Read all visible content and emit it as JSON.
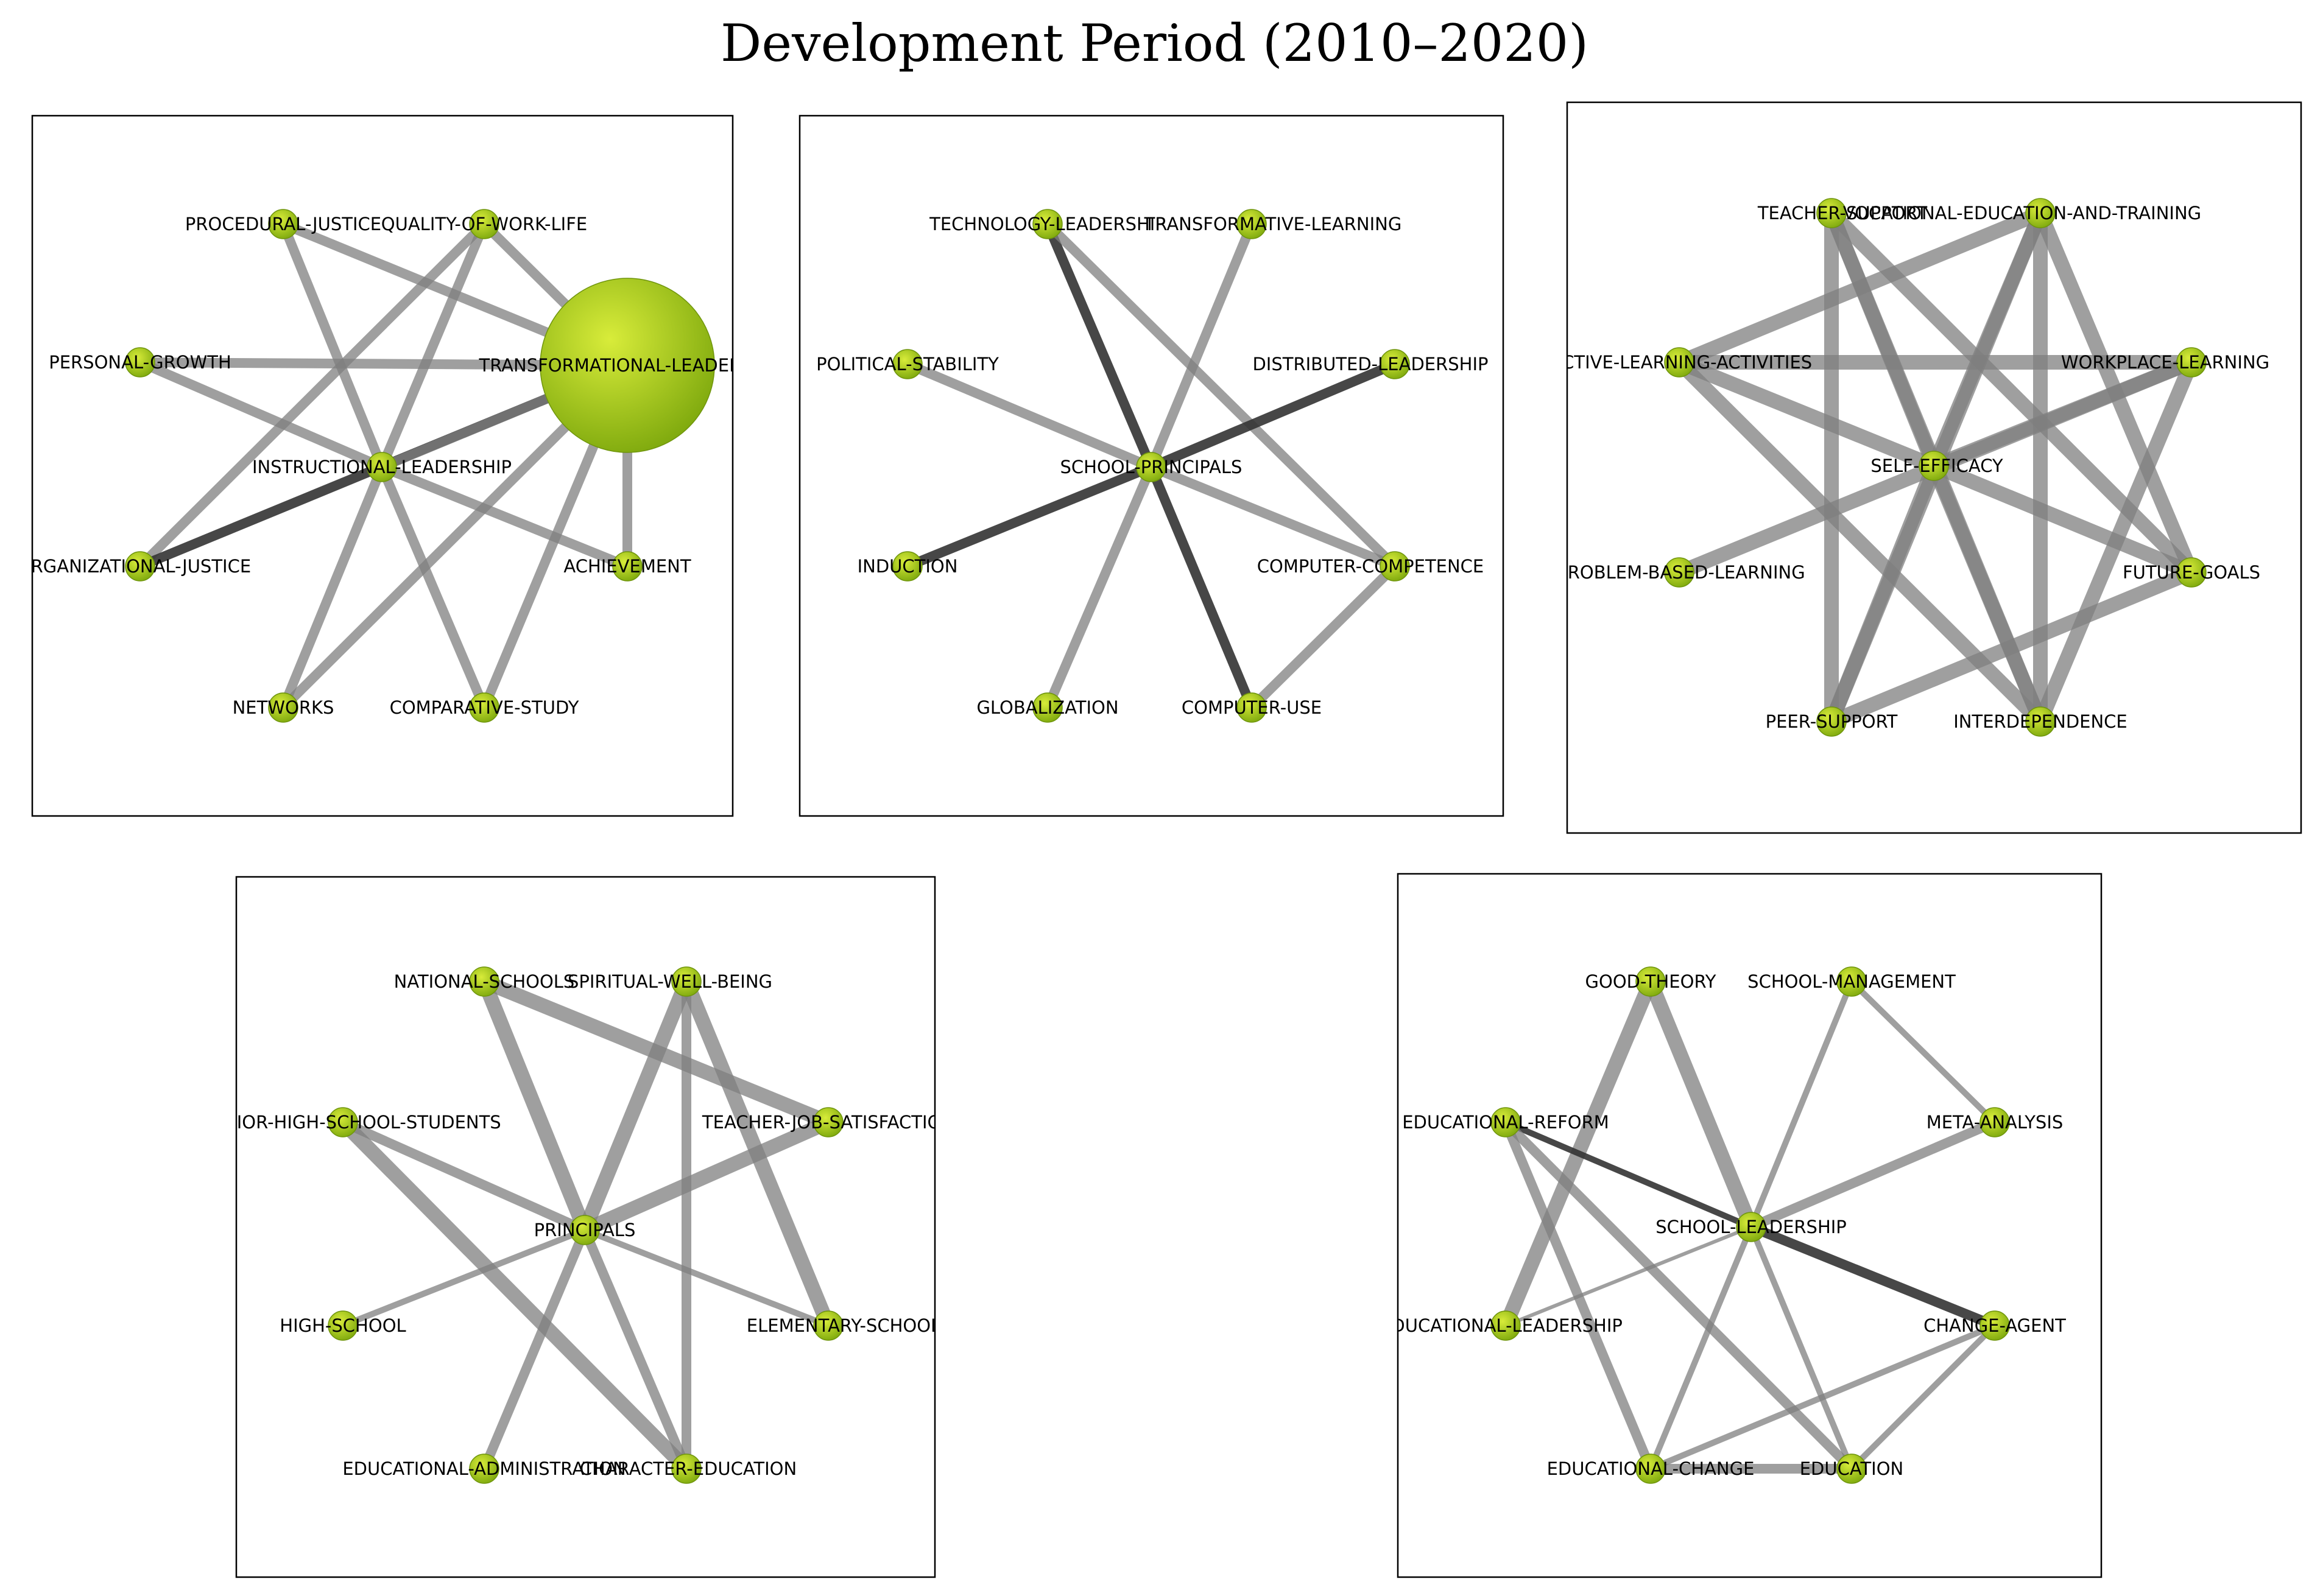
{
  "title": "Development Period (2010–2020)",
  "colors": {
    "node_fill_light": "#d8ec3a",
    "node_fill_dark": "#7da80d",
    "edge_light": "#7f7f7f",
    "edge_dark": "#333333",
    "panel_border": "#000000"
  },
  "networks": [
    {
      "id": "cluster-1",
      "nodes": [
        {
          "id": "n1",
          "label": "PROCEDURAL-JUSTICE"
        },
        {
          "id": "n2",
          "label": "QUALITY-OF-WORK-LIFE"
        },
        {
          "id": "n3",
          "label": "PERSONAL-GROWTH"
        },
        {
          "id": "n4",
          "label": "TRANSFORMATIONAL-LEADERSHIP",
          "major": true
        },
        {
          "id": "n5",
          "label": "INSTRUCTIONAL-LEADERSHIP"
        },
        {
          "id": "n6",
          "label": "ORGANIZATIONAL-JUSTICE"
        },
        {
          "id": "n7",
          "label": "ACHIEVEMENT"
        },
        {
          "id": "n8",
          "label": "NETWORKS"
        },
        {
          "id": "n9",
          "label": "COMPARATIVE-STUDY"
        }
      ],
      "edges": [
        {
          "source": "n1",
          "target": "n5",
          "weight": "medium",
          "strength": "moderate"
        },
        {
          "source": "n1",
          "target": "n4",
          "weight": "medium",
          "strength": "moderate"
        },
        {
          "source": "n2",
          "target": "n4",
          "weight": "medium",
          "strength": "moderate"
        },
        {
          "source": "n2",
          "target": "n5",
          "weight": "medium",
          "strength": "moderate"
        },
        {
          "source": "n2",
          "target": "n6",
          "weight": "medium",
          "strength": "moderate"
        },
        {
          "source": "n3",
          "target": "n4",
          "weight": "medium",
          "strength": "moderate"
        },
        {
          "source": "n3",
          "target": "n5",
          "weight": "medium",
          "strength": "moderate"
        },
        {
          "source": "n6",
          "target": "n4",
          "weight": "medium",
          "strength": "strong"
        },
        {
          "source": "n5",
          "target": "n4",
          "weight": "medium",
          "strength": "moderate"
        },
        {
          "source": "n5",
          "target": "n7",
          "weight": "medium",
          "strength": "moderate"
        },
        {
          "source": "n5",
          "target": "n8",
          "weight": "medium",
          "strength": "moderate"
        },
        {
          "source": "n5",
          "target": "n9",
          "weight": "medium",
          "strength": "moderate"
        },
        {
          "source": "n4",
          "target": "n7",
          "weight": "medium",
          "strength": "moderate"
        },
        {
          "source": "n4",
          "target": "n8",
          "weight": "medium",
          "strength": "moderate"
        },
        {
          "source": "n4",
          "target": "n9",
          "weight": "medium",
          "strength": "moderate"
        }
      ]
    },
    {
      "id": "cluster-2",
      "nodes": [
        {
          "id": "m1",
          "label": "TECHNOLOGY-LEADERSHIP"
        },
        {
          "id": "m2",
          "label": "TRANSFORMATIVE-LEARNING"
        },
        {
          "id": "m3",
          "label": "POLITICAL-STABILITY"
        },
        {
          "id": "m4",
          "label": "DISTRIBUTED-LEADERSHIP"
        },
        {
          "id": "m5",
          "label": "SCHOOL-PRINCIPALS"
        },
        {
          "id": "m6",
          "label": "INDUCTION"
        },
        {
          "id": "m7",
          "label": "COMPUTER-COMPETENCE"
        },
        {
          "id": "m8",
          "label": "GLOBALIZATION"
        },
        {
          "id": "m9",
          "label": "COMPUTER-USE"
        }
      ],
      "edges": [
        {
          "source": "m1",
          "target": "m5",
          "weight": "medium",
          "strength": "strong"
        },
        {
          "source": "m1",
          "target": "m7",
          "weight": "medium",
          "strength": "moderate"
        },
        {
          "source": "m2",
          "target": "m5",
          "weight": "medium",
          "strength": "moderate"
        },
        {
          "source": "m3",
          "target": "m5",
          "weight": "medium",
          "strength": "moderate"
        },
        {
          "source": "m4",
          "target": "m5",
          "weight": "medium",
          "strength": "strong"
        },
        {
          "source": "m6",
          "target": "m5",
          "weight": "medium",
          "strength": "strong"
        },
        {
          "source": "m5",
          "target": "m7",
          "weight": "medium",
          "strength": "moderate"
        },
        {
          "source": "m5",
          "target": "m8",
          "weight": "medium",
          "strength": "moderate"
        },
        {
          "source": "m5",
          "target": "m9",
          "weight": "medium",
          "strength": "strong"
        },
        {
          "source": "m7",
          "target": "m9",
          "weight": "medium",
          "strength": "moderate"
        }
      ]
    },
    {
      "id": "cluster-3",
      "nodes": [
        {
          "id": "k1",
          "label": "TEACHER-SUPPORT"
        },
        {
          "id": "k2",
          "label": "VOCATIONAL-EDUCATION-AND-TRAINING"
        },
        {
          "id": "k3",
          "label": "ACTIVE-LEARNING-ACTIVITIES"
        },
        {
          "id": "k4",
          "label": "WORKPLACE-LEARNING"
        },
        {
          "id": "k5",
          "label": "SELF-EFFICACY"
        },
        {
          "id": "k6",
          "label": "PROBLEM-BASED-LEARNING"
        },
        {
          "id": "k7",
          "label": "FUTURE-GOALS"
        },
        {
          "id": "k8",
          "label": "PEER-SUPPORT"
        },
        {
          "id": "k9",
          "label": "INTERDEPENDENCE"
        }
      ],
      "edges": [
        {
          "source": "k1",
          "target": "k5",
          "weight": "heavy",
          "strength": "moderate"
        },
        {
          "source": "k1",
          "target": "k8",
          "weight": "heavy",
          "strength": "moderate"
        },
        {
          "source": "k1",
          "target": "k7",
          "weight": "heavy",
          "strength": "moderate"
        },
        {
          "source": "k1",
          "target": "k9",
          "weight": "heavy",
          "strength": "moderate"
        },
        {
          "source": "k2",
          "target": "k3",
          "weight": "heavy",
          "strength": "moderate"
        },
        {
          "source": "k2",
          "target": "k5",
          "weight": "heavy",
          "strength": "moderate"
        },
        {
          "source": "k2",
          "target": "k9",
          "weight": "heavy",
          "strength": "moderate"
        },
        {
          "source": "k2",
          "target": "k8",
          "weight": "heavy",
          "strength": "moderate"
        },
        {
          "source": "k2",
          "target": "k7",
          "weight": "heavy",
          "strength": "moderate"
        },
        {
          "source": "k3",
          "target": "k4",
          "weight": "heavy",
          "strength": "moderate"
        },
        {
          "source": "k3",
          "target": "k5",
          "weight": "heavy",
          "strength": "moderate"
        },
        {
          "source": "k3",
          "target": "k9",
          "weight": "heavy",
          "strength": "moderate"
        },
        {
          "source": "k4",
          "target": "k5",
          "weight": "heavy",
          "strength": "moderate"
        },
        {
          "source": "k4",
          "target": "k6",
          "weight": "heavy",
          "strength": "moderate"
        },
        {
          "source": "k4",
          "target": "k9",
          "weight": "heavy",
          "strength": "moderate"
        },
        {
          "source": "k5",
          "target": "k8",
          "weight": "heavy",
          "strength": "moderate"
        },
        {
          "source": "k5",
          "target": "k9",
          "weight": "heavy",
          "strength": "moderate"
        },
        {
          "source": "k5",
          "target": "k7",
          "weight": "heavy",
          "strength": "moderate"
        },
        {
          "source": "k7",
          "target": "k8",
          "weight": "heavy",
          "strength": "moderate"
        }
      ]
    },
    {
      "id": "cluster-4",
      "nodes": [
        {
          "id": "p1",
          "label": "NATIONAL-SCHOOLS"
        },
        {
          "id": "p2",
          "label": "SPIRITUAL-WELL-BEING"
        },
        {
          "id": "p3",
          "label": "JUNIOR-HIGH-SCHOOL-STUDENTS"
        },
        {
          "id": "p4",
          "label": "TEACHER-JOB-SATISFACTION"
        },
        {
          "id": "p5",
          "label": "PRINCIPALS"
        },
        {
          "id": "p6",
          "label": "HIGH-SCHOOL"
        },
        {
          "id": "p7",
          "label": "ELEMENTARY-SCHOOL"
        },
        {
          "id": "p8",
          "label": "EDUCATIONAL-ADMINISTRATION"
        },
        {
          "id": "p9",
          "label": "CHARACTER-EDUCATION"
        }
      ],
      "edges": [
        {
          "source": "p1",
          "target": "p5",
          "weight": "heavy",
          "strength": "moderate"
        },
        {
          "source": "p1",
          "target": "p4",
          "weight": "heavy",
          "strength": "moderate"
        },
        {
          "source": "p2",
          "target": "p5",
          "weight": "heavy",
          "strength": "moderate"
        },
        {
          "source": "p2",
          "target": "p7",
          "weight": "heavy",
          "strength": "moderate"
        },
        {
          "source": "p2",
          "target": "p9",
          "weight": "medium",
          "strength": "moderate"
        },
        {
          "source": "p3",
          "target": "p5",
          "weight": "medium",
          "strength": "moderate"
        },
        {
          "source": "p3",
          "target": "p9",
          "weight": "heavy",
          "strength": "moderate"
        },
        {
          "source": "p4",
          "target": "p5",
          "weight": "heavy",
          "strength": "moderate"
        },
        {
          "source": "p5",
          "target": "p6",
          "weight": "light",
          "strength": "moderate"
        },
        {
          "source": "p5",
          "target": "p7",
          "weight": "light",
          "strength": "moderate"
        },
        {
          "source": "p5",
          "target": "p8",
          "weight": "medium",
          "strength": "moderate"
        },
        {
          "source": "p5",
          "target": "p9",
          "weight": "medium",
          "strength": "moderate"
        }
      ]
    },
    {
      "id": "cluster-5",
      "nodes": [
        {
          "id": "q1",
          "label": "GOOD-THEORY"
        },
        {
          "id": "q2",
          "label": "SCHOOL-MANAGEMENT"
        },
        {
          "id": "q3",
          "label": "EDUCATIONAL-REFORM"
        },
        {
          "id": "q4",
          "label": "META-ANALYSIS"
        },
        {
          "id": "q5",
          "label": "SCHOOL-LEADERSHIP"
        },
        {
          "id": "q6",
          "label": "EDUCATIONAL-LEADERSHIP"
        },
        {
          "id": "q7",
          "label": "CHANGE-AGENT"
        },
        {
          "id": "q8",
          "label": "EDUCATIONAL-CHANGE"
        },
        {
          "id": "q9",
          "label": "EDUCATION"
        }
      ],
      "edges": [
        {
          "source": "q1",
          "target": "q6",
          "weight": "heavy",
          "strength": "moderate"
        },
        {
          "source": "q1",
          "target": "q5",
          "weight": "heavy",
          "strength": "moderate"
        },
        {
          "source": "q2",
          "target": "q5",
          "weight": "light",
          "strength": "moderate"
        },
        {
          "source": "q2",
          "target": "q4",
          "weight": "light",
          "strength": "moderate"
        },
        {
          "source": "q3",
          "target": "q5",
          "weight": "light",
          "strength": "strong"
        },
        {
          "source": "q3",
          "target": "q8",
          "weight": "medium",
          "strength": "moderate"
        },
        {
          "source": "q3",
          "target": "q9",
          "weight": "medium",
          "strength": "moderate"
        },
        {
          "source": "q4",
          "target": "q5",
          "weight": "medium",
          "strength": "moderate"
        },
        {
          "source": "q5",
          "target": "q6",
          "weight": "thin",
          "strength": "moderate"
        },
        {
          "source": "q5",
          "target": "q7",
          "weight": "medium",
          "strength": "strong"
        },
        {
          "source": "q5",
          "target": "q8",
          "weight": "light",
          "strength": "moderate"
        },
        {
          "source": "q5",
          "target": "q9",
          "weight": "light",
          "strength": "moderate"
        },
        {
          "source": "q7",
          "target": "q8",
          "weight": "light",
          "strength": "moderate"
        },
        {
          "source": "q7",
          "target": "q9",
          "weight": "light",
          "strength": "moderate"
        },
        {
          "source": "q8",
          "target": "q9",
          "weight": "medium",
          "strength": "moderate"
        }
      ]
    }
  ]
}
